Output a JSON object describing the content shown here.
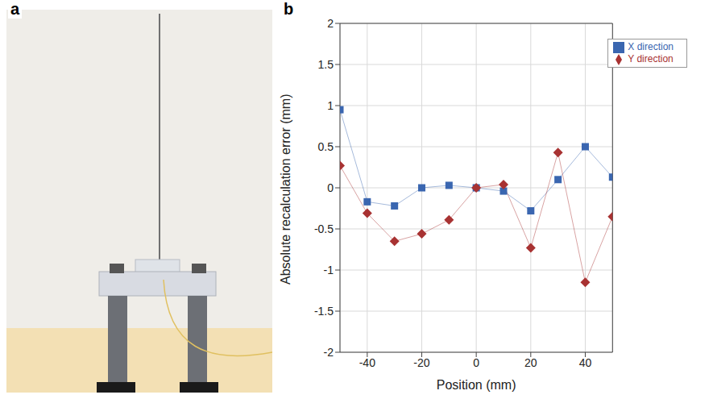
{
  "panel_labels": [
    "a",
    "b"
  ],
  "chart_data": {
    "type": "line",
    "x_label": "Position (mm)",
    "y_label": "Absolute recalculation error (mm)",
    "x": [
      -50,
      -40,
      -30,
      -20,
      -10,
      0,
      10,
      20,
      30,
      40,
      50
    ],
    "series": [
      {
        "name": "X direction",
        "color": "#3a66b0",
        "marker": "square",
        "line_style": "solid",
        "values": [
          0.95,
          -0.17,
          -0.22,
          0.0,
          0.03,
          0.0,
          -0.04,
          -0.28,
          0.1,
          0.5,
          0.13
        ]
      },
      {
        "name": "Y direction",
        "color": "#a83232",
        "marker": "diamond",
        "line_style": "solid",
        "values": [
          0.27,
          -0.31,
          -0.65,
          -0.56,
          -0.39,
          0.0,
          0.04,
          -0.73,
          0.43,
          -1.15,
          -0.35
        ]
      }
    ],
    "xlim": [
      -50,
      50
    ],
    "xticks": [
      -40,
      -20,
      0,
      20,
      40
    ],
    "ylim": [
      -2,
      2
    ],
    "yticks": [
      -2,
      -1.5,
      -1,
      -0.5,
      0,
      0.5,
      1,
      1.5,
      2
    ],
    "grid": true,
    "legend": "upper right"
  }
}
